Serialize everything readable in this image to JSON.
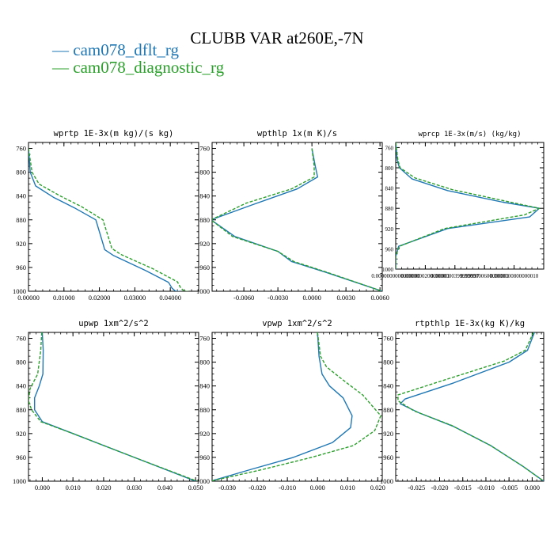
{
  "header": {
    "title": "CLUBB VAR at260E,-7N",
    "legend": [
      {
        "label": "— cam078_dflt_rg",
        "color": "#1f77b4"
      },
      {
        "label": "— cam078_diagnostic_rg",
        "color": "#2ca02c"
      }
    ]
  },
  "colors": {
    "series_1": "#1f77b4",
    "series_2": "#2ca02c",
    "axis": "#000000"
  },
  "chart_data": [
    {
      "type": "line",
      "title": "wprtp  1E-3x(m kg)/(s kg)",
      "xlim": [
        0,
        0.048
      ],
      "ylim": [
        1000,
        750
      ],
      "x_ticks": [
        "0.00000",
        "0.01000",
        "0.02000",
        "0.03000",
        "0.04000"
      ],
      "x_tick_values": [
        0,
        0.01,
        0.02,
        0.03,
        0.04
      ],
      "y_ticks": [
        "760",
        "800",
        "840",
        "880",
        "920",
        "960",
        "1000"
      ],
      "y_tick_values": [
        760,
        800,
        840,
        880,
        920,
        960,
        1000
      ],
      "series": [
        {
          "name": "cam078_dflt_rg",
          "dashed": false,
          "x": [
            0.0,
            0.0005,
            0.002,
            0.007,
            0.013,
            0.019,
            0.021,
            0.0215,
            0.024,
            0.033,
            0.0395,
            0.0405,
            0.0415,
            0.048
          ],
          "y": [
            760,
            800,
            823,
            842,
            860,
            880,
            920,
            930,
            940,
            965,
            985,
            995,
            1000,
            1003
          ]
        },
        {
          "name": "cam078_diagnostic_rg",
          "dashed": true,
          "x": [
            0.0,
            0.001,
            0.003,
            0.009,
            0.015,
            0.021,
            0.023,
            0.0235,
            0.026,
            0.035,
            0.042,
            0.043,
            0.044,
            0.048
          ],
          "y": [
            760,
            800,
            820,
            840,
            858,
            880,
            918,
            928,
            938,
            962,
            984,
            995,
            1000,
            1002
          ]
        }
      ]
    },
    {
      "type": "line",
      "title": "wpthlp  1x(m K)/s",
      "xlim": [
        -0.0088,
        0.0062
      ],
      "ylim": [
        1000,
        750
      ],
      "x_ticks": [
        "-0.0060",
        "-0.0030",
        "0.0000",
        "0.0030",
        "0.0060"
      ],
      "x_tick_values": [
        -0.006,
        -0.003,
        0.0,
        0.003,
        0.006
      ],
      "y_ticks": [
        "760",
        "800",
        "840",
        "880",
        "920",
        "960",
        "1000"
      ],
      "y_tick_values": [
        760,
        800,
        840,
        880,
        920,
        960,
        1000
      ],
      "series": [
        {
          "name": "cam078_dflt_rg",
          "dashed": false,
          "x": [
            0.0,
            0.0003,
            0.0005,
            -0.0013,
            -0.0053,
            -0.0089,
            -0.0068,
            -0.003,
            -0.0018,
            0.0012,
            0.0062
          ],
          "y": [
            760,
            790,
            808,
            828,
            855,
            880,
            908,
            933,
            950,
            968,
            1000
          ]
        },
        {
          "name": "cam078_diagnostic_rg",
          "dashed": true,
          "x": [
            0.0,
            0.0002,
            0.0002,
            -0.0018,
            -0.0058,
            -0.0089,
            -0.007,
            -0.003,
            -0.0016,
            0.0013,
            0.0062
          ],
          "y": [
            760,
            790,
            808,
            828,
            852,
            880,
            908,
            933,
            950,
            968,
            1000
          ]
        }
      ]
    },
    {
      "type": "line",
      "title": "wprcp  1E-3x(m/s) (kg/kg)",
      "xlim": [
        0,
        1e-07
      ],
      "ylim": [
        1000,
        750
      ],
      "x_ticks": [
        "0.0000000000000000",
        "0.0000000200000001",
        "0.0000000399999997",
        "0.0000000600000001",
        "0.0000000800000010"
      ],
      "x_tick_values": [
        0,
        2e-08,
        4e-08,
        6e-08,
        8e-08
      ],
      "y_ticks": [
        "760",
        "800",
        "840",
        "880",
        "920",
        "960",
        "1000"
      ],
      "y_tick_values": [
        760,
        800,
        840,
        880,
        920,
        960,
        1000
      ],
      "series": [
        {
          "name": "cam078_dflt_rg",
          "dashed": false,
          "x": [
            0.0,
            1e-09,
            2.5e-09,
            1.1e-08,
            3.5e-08,
            7.25e-08,
            9.7e-08,
            9.05e-08,
            3.5e-08,
            2e-09,
            0.0,
            0.0
          ],
          "y": [
            750,
            785,
            800,
            822,
            845,
            868,
            880,
            897,
            920,
            955,
            975,
            1000
          ]
        },
        {
          "name": "cam078_diagnostic_rg",
          "dashed": true,
          "x": [
            0.0,
            1.5e-09,
            3e-09,
            1.3e-08,
            3.8e-08,
            7.45e-08,
            9.7e-08,
            8.7e-08,
            3.3e-08,
            2.5e-09,
            0.0,
            0.0
          ],
          "y": [
            750,
            785,
            800,
            820,
            843,
            866,
            880,
            893,
            920,
            955,
            975,
            1000
          ]
        }
      ]
    },
    {
      "type": "line",
      "title": "upwp  1xm^2/s^2",
      "xlim": [
        -0.0045,
        0.051
      ],
      "ylim": [
        1000,
        750
      ],
      "x_ticks": [
        "0.000",
        "0.010",
        "0.020",
        "0.030",
        "0.040",
        "0.050"
      ],
      "x_tick_values": [
        0.0,
        0.01,
        0.02,
        0.03,
        0.04,
        0.05
      ],
      "y_ticks": [
        "760",
        "800",
        "840",
        "880",
        "920",
        "960",
        "1000"
      ],
      "y_tick_values": [
        760,
        800,
        840,
        880,
        920,
        960,
        1000
      ],
      "series": [
        {
          "name": "cam078_dflt_rg",
          "dashed": false,
          "x": [
            0.0,
            0.0003,
            0.0002,
            -0.001,
            -0.0025,
            -0.0025,
            0.0,
            0.01,
            0.03,
            0.05
          ],
          "y": [
            750,
            780,
            820,
            840,
            860,
            880,
            900,
            920,
            960,
            1000
          ]
        },
        {
          "name": "cam078_diagnostic_rg",
          "dashed": true,
          "x": [
            -0.0002,
            -0.0005,
            -0.0015,
            -0.004,
            -0.0045,
            -0.0035,
            -0.0005,
            0.01,
            0.03,
            0.0505
          ],
          "y": [
            750,
            780,
            820,
            845,
            865,
            880,
            900,
            920,
            960,
            1000
          ]
        }
      ]
    },
    {
      "type": "line",
      "title": "vpwp  1xm^2/s^2",
      "xlim": [
        -0.035,
        0.0215
      ],
      "ylim": [
        1000,
        750
      ],
      "x_ticks": [
        "-0.030",
        "-0.020",
        "-0.010",
        "0.000",
        "0.010",
        "0.020"
      ],
      "x_tick_values": [
        -0.03,
        -0.02,
        -0.01,
        0.0,
        0.01,
        0.02
      ],
      "y_ticks": [
        "760",
        "800",
        "840",
        "880",
        "920",
        "960",
        "1000"
      ],
      "y_tick_values": [
        760,
        800,
        840,
        880,
        920,
        960,
        1000
      ],
      "series": [
        {
          "name": "cam078_dflt_rg",
          "dashed": false,
          "x": [
            0.0,
            0.0005,
            0.0015,
            0.004,
            0.0085,
            0.0115,
            0.011,
            0.005,
            -0.008,
            -0.022,
            -0.0355
          ],
          "y": [
            750,
            790,
            820,
            840,
            860,
            890,
            910,
            935,
            960,
            980,
            1000
          ]
        },
        {
          "name": "cam078_diagnostic_rg",
          "dashed": true,
          "x": [
            0.0,
            0.001,
            0.003,
            0.0085,
            0.015,
            0.021,
            0.019,
            0.012,
            -0.002,
            -0.018,
            -0.0355
          ],
          "y": [
            750,
            790,
            808,
            830,
            855,
            890,
            915,
            940,
            960,
            980,
            1000
          ]
        }
      ]
    },
    {
      "type": "line",
      "title": "rtpthlp  1E-3x(kg K)/kg",
      "xlim": [
        -0.0295,
        0.0025
      ],
      "ylim": [
        1000,
        750
      ],
      "x_ticks": [
        "-0.025",
        "-0.020",
        "-0.015",
        "-0.010",
        "-0.005",
        "0.000"
      ],
      "x_tick_values": [
        -0.025,
        -0.02,
        -0.015,
        -0.01,
        -0.005,
        0.0
      ],
      "y_ticks": [
        "760",
        "800",
        "840",
        "880",
        "920",
        "960",
        "1000"
      ],
      "y_tick_values": [
        760,
        800,
        840,
        880,
        920,
        960,
        1000
      ],
      "series": [
        {
          "name": "cam078_dflt_rg",
          "dashed": false,
          "x": [
            0.0005,
            -0.001,
            -0.005,
            -0.017,
            -0.0275,
            -0.0285,
            -0.0245,
            -0.017,
            -0.009,
            -0.002,
            0.0025
          ],
          "y": [
            750,
            780,
            800,
            835,
            862,
            870,
            885,
            908,
            940,
            975,
            1000
          ]
        },
        {
          "name": "cam078_diagnostic_rg",
          "dashed": true,
          "x": [
            0.0003,
            -0.0015,
            -0.006,
            -0.019,
            -0.029,
            -0.029,
            -0.0255,
            -0.0175,
            -0.009,
            -0.002,
            0.0025
          ],
          "y": [
            750,
            780,
            798,
            830,
            855,
            865,
            882,
            906,
            940,
            975,
            1000
          ]
        }
      ]
    }
  ]
}
